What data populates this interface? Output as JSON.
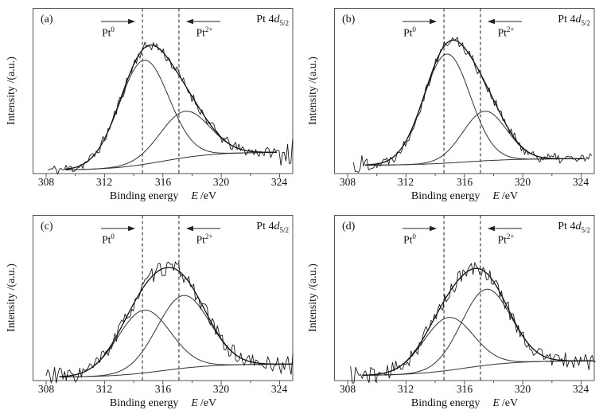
{
  "axes": {
    "xlabel_text": "Binding energy",
    "xlabel_symbol": "E",
    "xlabel_unit": "/eV",
    "x_major_ticks": [
      308,
      312,
      316,
      320,
      324
    ],
    "x_minor_ticks": [
      310,
      314,
      318,
      322
    ]
  },
  "peak_title": {
    "prefix": "Pt 4",
    "italic": "d",
    "sub": "5/2"
  },
  "markers": {
    "pt0": {
      "base": "Pt",
      "sup": "0",
      "energy_eV": 314.6
    },
    "pt2": {
      "base": "Pt",
      "sup": "2+",
      "energy_eV": 317.1
    }
  },
  "chart_data": [
    {
      "type": "line",
      "panel_label": "(a)",
      "xlabel": "Binding energy E /eV",
      "ylabel": "Intensity /(a.u.)",
      "xlim": [
        307.1,
        324.9
      ],
      "ylim": [
        0,
        1
      ],
      "x_ticks": [
        308,
        312,
        316,
        320,
        324
      ],
      "dashed_markers_eV": [
        314.6,
        317.1
      ],
      "components": [
        {
          "name": "Pt0 peak",
          "center_eV": 314.7,
          "sigma_eV": 1.7,
          "amplitude": 0.63
        },
        {
          "name": "Pt2+ peak",
          "center_eV": 317.5,
          "sigma_eV": 1.7,
          "amplitude": 0.28
        }
      ],
      "baseline": {
        "start": 0.02,
        "end": 0.13
      },
      "noise": {
        "amplitude": 0.033,
        "seed": 11,
        "left_boost": 1.0,
        "right_boost": 2.4
      },
      "data_range_eV": [
        308.1,
        325.0
      ],
      "fit_range_eV": [
        309.3,
        323.8
      ]
    },
    {
      "type": "line",
      "panel_label": "(b)",
      "xlabel": "Binding energy E /eV",
      "ylabel": "Intensity /(a.u.)",
      "xlim": [
        307.1,
        324.9
      ],
      "ylim": [
        0,
        1
      ],
      "x_ticks": [
        308,
        312,
        316,
        320,
        324
      ],
      "dashed_markers_eV": [
        314.6,
        317.1
      ],
      "components": [
        {
          "name": "Pt0 peak",
          "center_eV": 314.8,
          "sigma_eV": 1.6,
          "amplitude": 0.66
        },
        {
          "name": "Pt2+ peak",
          "center_eV": 317.4,
          "sigma_eV": 1.5,
          "amplitude": 0.3
        }
      ],
      "baseline": {
        "start": 0.05,
        "end": 0.09
      },
      "noise": {
        "amplitude": 0.033,
        "seed": 22,
        "left_boost": 2.2,
        "right_boost": 1.3
      },
      "data_range_eV": [
        308.4,
        324.8
      ],
      "fit_range_eV": [
        309.2,
        324.2
      ]
    },
    {
      "type": "line",
      "panel_label": "(c)",
      "xlabel": "Binding energy E /eV",
      "ylabel": "Intensity /(a.u.)",
      "xlim": [
        307.1,
        324.9
      ],
      "ylim": [
        0,
        1
      ],
      "x_ticks": [
        308,
        312,
        316,
        320,
        324
      ],
      "dashed_markers_eV": [
        314.6,
        317.1
      ],
      "components": [
        {
          "name": "Pt0 peak",
          "center_eV": 314.7,
          "sigma_eV": 1.8,
          "amplitude": 0.38
        },
        {
          "name": "Pt2+ peak",
          "center_eV": 317.4,
          "sigma_eV": 1.8,
          "amplitude": 0.44
        }
      ],
      "baseline": {
        "start": 0.02,
        "end": 0.1
      },
      "noise": {
        "amplitude": 0.048,
        "seed": 33,
        "left_boost": 1.9,
        "right_boost": 1.4
      },
      "data_range_eV": [
        308.0,
        325.0
      ],
      "fit_range_eV": [
        308.9,
        324.9
      ]
    },
    {
      "type": "line",
      "panel_label": "(d)",
      "xlabel": "Binding energy E /eV",
      "ylabel": "Intensity /(a.u.)",
      "xlim": [
        307.1,
        324.9
      ],
      "ylim": [
        0,
        1
      ],
      "x_ticks": [
        308,
        312,
        316,
        320,
        324
      ],
      "dashed_markers_eV": [
        314.6,
        317.1
      ],
      "components": [
        {
          "name": "Pt0 peak",
          "center_eV": 314.9,
          "sigma_eV": 1.7,
          "amplitude": 0.32
        },
        {
          "name": "Pt2+ peak",
          "center_eV": 317.5,
          "sigma_eV": 1.7,
          "amplitude": 0.46
        }
      ],
      "baseline": {
        "start": 0.03,
        "end": 0.12
      },
      "noise": {
        "amplitude": 0.048,
        "seed": 44,
        "left_boost": 1.7,
        "right_boost": 1.3
      },
      "data_range_eV": [
        308.2,
        325.0
      ],
      "fit_range_eV": [
        309.0,
        324.8
      ]
    }
  ]
}
